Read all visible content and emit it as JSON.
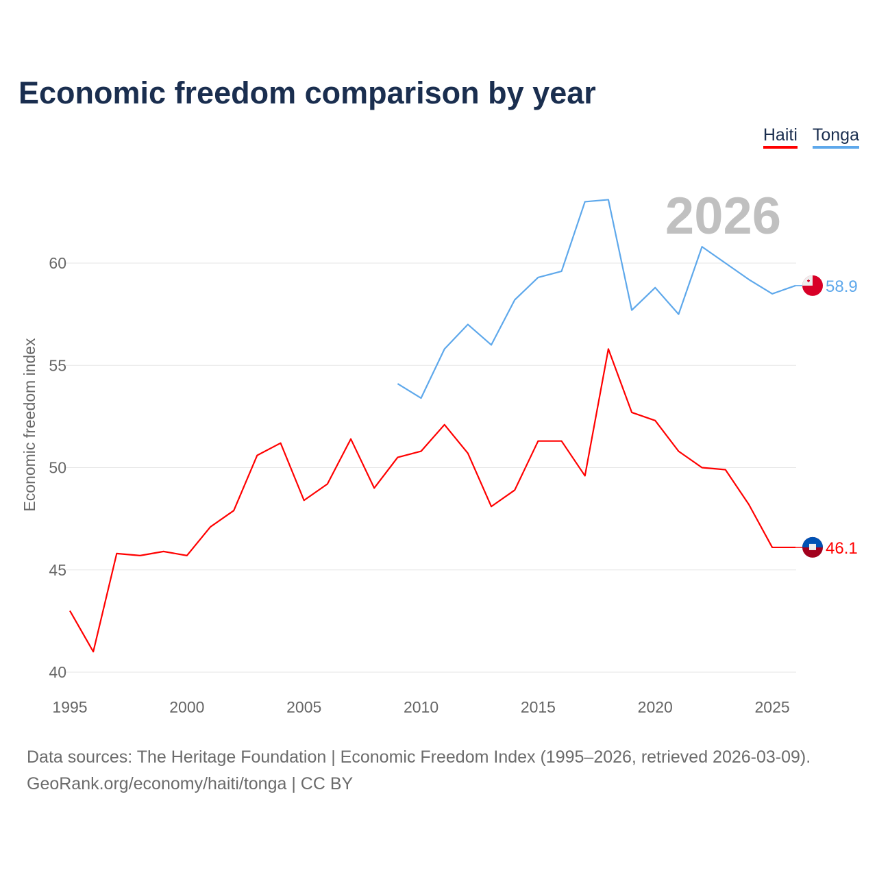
{
  "title": "Economic freedom comparison by year",
  "source_line1": "Data sources: The Heritage Foundation | Economic Freedom Index (1995–2026, retrieved 2026-03-09).",
  "source_line2": "GeoRank.org/economy/haiti/tonga | CC BY",
  "chart_data": {
    "type": "line",
    "title": "Economic freedom comparison by year",
    "xlabel": "",
    "ylabel": "Economic freedom index",
    "xlim": [
      1995,
      2026
    ],
    "ylim": [
      40,
      63.5
    ],
    "xticks": [
      1995,
      2000,
      2005,
      2010,
      2015,
      2020,
      2025
    ],
    "yticks": [
      40,
      45,
      50,
      55,
      60
    ],
    "grid": true,
    "legend": "top-right",
    "year_watermark": "2026",
    "series": [
      {
        "name": "Haiti",
        "color": "#ff0000",
        "end_label": "46.1",
        "x": [
          1995,
          1996,
          1997,
          1998,
          1999,
          2000,
          2001,
          2002,
          2003,
          2004,
          2005,
          2006,
          2007,
          2008,
          2009,
          2010,
          2011,
          2012,
          2013,
          2014,
          2015,
          2016,
          2017,
          2018,
          2019,
          2020,
          2021,
          2022,
          2023,
          2024,
          2025,
          2026
        ],
        "values": [
          43.0,
          41.0,
          45.8,
          45.7,
          45.9,
          45.7,
          47.1,
          47.9,
          50.6,
          51.2,
          48.4,
          49.2,
          51.4,
          49.0,
          50.5,
          50.8,
          52.1,
          50.7,
          48.1,
          48.9,
          51.3,
          51.3,
          49.6,
          55.8,
          52.7,
          52.3,
          50.8,
          50.0,
          49.9,
          48.2,
          46.1,
          46.1
        ]
      },
      {
        "name": "Tonga",
        "color": "#5ea8eb",
        "end_label": "58.9",
        "x": [
          2009,
          2010,
          2011,
          2012,
          2013,
          2014,
          2015,
          2016,
          2017,
          2018,
          2019,
          2020,
          2021,
          2022,
          2023,
          2024,
          2025,
          2026
        ],
        "values": [
          54.1,
          53.4,
          55.8,
          57.0,
          56.0,
          58.2,
          59.3,
          59.6,
          63.0,
          63.1,
          57.7,
          58.8,
          57.5,
          60.8,
          60.0,
          59.2,
          58.5,
          58.9
        ]
      }
    ]
  }
}
